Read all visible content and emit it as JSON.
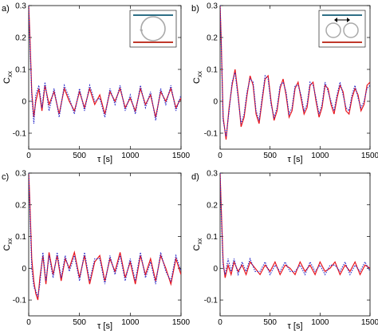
{
  "figure": {
    "xlabel": "τ [s]",
    "ylabel_main": "C",
    "ylabel_sub": "xx"
  },
  "colors": {
    "red": "#e8141c",
    "blue": "#2323c8",
    "inset_top": "#2e6f86",
    "inset_bottom": "#c0392b",
    "inset_loop": "#a9a9a9"
  },
  "chart_data": [
    {
      "panel_label": "a)",
      "type": "line",
      "xlabel": "τ [s]",
      "ylabel": "C_xx",
      "xlim": [
        0,
        1500
      ],
      "ylim": [
        -0.15,
        0.3
      ],
      "xticks": [
        "0",
        "500",
        "1000",
        "1500"
      ],
      "yticks": [
        "-0.1",
        "0",
        "0.1",
        "0.2",
        "0.3"
      ],
      "show_xlabel": true,
      "show_ylabel": true,
      "inset": "single-roll",
      "series": [
        {
          "color": "red",
          "style": "solid",
          "x": [
            0,
            10,
            30,
            50,
            70,
            100,
            130,
            160,
            200,
            250,
            300,
            350,
            400,
            450,
            500,
            550,
            600,
            650,
            700,
            750,
            800,
            850,
            900,
            950,
            1000,
            1050,
            1100,
            1150,
            1200,
            1250,
            1300,
            1350,
            1400,
            1450,
            1500
          ],
          "y": [
            0.3,
            0.22,
            0.03,
            -0.05,
            0.0,
            0.04,
            -0.03,
            0.05,
            -0.01,
            0.03,
            -0.04,
            0.04,
            0.0,
            -0.03,
            0.03,
            -0.02,
            0.04,
            -0.01,
            0.02,
            -0.04,
            0.03,
            0.0,
            0.04,
            -0.02,
            0.01,
            -0.03,
            0.04,
            -0.01,
            0.02,
            -0.05,
            0.03,
            0.0,
            0.04,
            -0.02,
            0.01
          ]
        },
        {
          "color": "blue",
          "style": "dotted",
          "x": [
            0,
            10,
            30,
            50,
            70,
            100,
            130,
            160,
            200,
            250,
            300,
            350,
            400,
            450,
            500,
            550,
            600,
            650,
            700,
            750,
            800,
            850,
            900,
            950,
            1000,
            1050,
            1100,
            1150,
            1200,
            1250,
            1300,
            1350,
            1400,
            1450,
            1500
          ],
          "y": [
            0.3,
            0.2,
            0.02,
            -0.07,
            0.02,
            0.05,
            -0.02,
            0.06,
            -0.03,
            0.04,
            -0.05,
            0.05,
            0.01,
            -0.04,
            0.04,
            -0.03,
            0.05,
            0.0,
            0.01,
            -0.05,
            0.04,
            -0.01,
            0.05,
            -0.03,
            0.02,
            -0.04,
            0.05,
            -0.02,
            0.03,
            -0.06,
            0.04,
            -0.01,
            0.05,
            -0.03,
            0.02
          ]
        }
      ]
    },
    {
      "panel_label": "b)",
      "type": "line",
      "xlabel": "τ [s]",
      "ylabel": "C_xx",
      "xlim": [
        0,
        1500
      ],
      "ylim": [
        -0.15,
        0.3
      ],
      "xticks": [
        "0",
        "500",
        "1000",
        "1500"
      ],
      "yticks": [
        "-0.1",
        "0",
        "0.1",
        "0.2",
        "0.3"
      ],
      "show_xlabel": true,
      "show_ylabel": true,
      "inset": "two-rolls",
      "series": [
        {
          "color": "red",
          "style": "solid",
          "x": [
            0,
            10,
            30,
            60,
            90,
            120,
            150,
            180,
            210,
            240,
            270,
            300,
            330,
            360,
            390,
            420,
            450,
            480,
            510,
            540,
            570,
            600,
            630,
            660,
            690,
            720,
            750,
            780,
            810,
            840,
            870,
            900,
            930,
            960,
            990,
            1020,
            1050,
            1080,
            1110,
            1140,
            1170,
            1200,
            1230,
            1260,
            1290,
            1320,
            1350,
            1380,
            1410,
            1440,
            1470,
            1500
          ],
          "y": [
            0.3,
            0.2,
            -0.05,
            -0.12,
            -0.02,
            0.05,
            0.1,
            0.02,
            -0.08,
            -0.05,
            0.02,
            0.08,
            0.05,
            -0.04,
            -0.07,
            0.0,
            0.07,
            0.08,
            0.0,
            -0.06,
            -0.03,
            0.04,
            0.07,
            0.02,
            -0.05,
            -0.03,
            0.04,
            0.06,
            0.01,
            -0.04,
            -0.02,
            0.05,
            0.06,
            0.0,
            -0.05,
            -0.02,
            0.05,
            0.04,
            -0.01,
            -0.04,
            0.01,
            0.05,
            0.03,
            -0.03,
            -0.04,
            0.01,
            0.04,
            0.02,
            -0.03,
            -0.01,
            0.05,
            0.06
          ]
        },
        {
          "color": "blue",
          "style": "dotted",
          "x": [
            0,
            10,
            30,
            60,
            90,
            120,
            150,
            180,
            210,
            240,
            270,
            300,
            330,
            360,
            390,
            420,
            450,
            480,
            510,
            540,
            570,
            600,
            630,
            660,
            690,
            720,
            750,
            780,
            810,
            840,
            870,
            900,
            930,
            960,
            990,
            1020,
            1050,
            1080,
            1110,
            1140,
            1170,
            1200,
            1230,
            1260,
            1290,
            1320,
            1350,
            1380,
            1410,
            1440,
            1470,
            1500
          ],
          "y": [
            0.3,
            0.19,
            -0.06,
            -0.11,
            -0.03,
            0.06,
            0.09,
            0.01,
            -0.07,
            -0.04,
            0.03,
            0.07,
            0.06,
            -0.03,
            -0.06,
            0.01,
            0.08,
            0.07,
            -0.01,
            -0.05,
            -0.02,
            0.05,
            0.06,
            0.03,
            -0.04,
            -0.02,
            0.05,
            0.05,
            0.02,
            -0.03,
            -0.01,
            0.06,
            0.05,
            0.01,
            -0.04,
            -0.01,
            0.06,
            0.03,
            0.0,
            -0.03,
            0.02,
            0.06,
            0.02,
            -0.02,
            -0.03,
            0.02,
            0.05,
            0.01,
            -0.02,
            0.0,
            0.04,
            0.05
          ]
        }
      ]
    },
    {
      "panel_label": "c)",
      "type": "line",
      "xlabel": "τ [s]",
      "ylabel": "C_xx",
      "xlim": [
        0,
        1500
      ],
      "ylim": [
        -0.15,
        0.3
      ],
      "xticks": [
        "0",
        "500",
        "1000",
        "1500"
      ],
      "yticks": [
        "-0.1",
        "0",
        "0.1",
        "0.2",
        "0.3"
      ],
      "show_xlabel": true,
      "show_ylabel": true,
      "inset": "",
      "series": [
        {
          "color": "red",
          "style": "solid",
          "x": [
            0,
            10,
            30,
            50,
            70,
            90,
            110,
            140,
            170,
            200,
            240,
            280,
            320,
            360,
            400,
            450,
            500,
            550,
            600,
            650,
            700,
            750,
            800,
            850,
            900,
            950,
            1000,
            1050,
            1100,
            1150,
            1200,
            1250,
            1300,
            1350,
            1400,
            1450,
            1500
          ],
          "y": [
            0.3,
            0.22,
            0.03,
            -0.04,
            -0.08,
            -0.1,
            -0.03,
            0.04,
            -0.05,
            0.05,
            -0.02,
            0.04,
            -0.04,
            0.03,
            0.0,
            0.05,
            -0.03,
            0.04,
            -0.05,
            0.02,
            0.04,
            -0.04,
            0.03,
            -0.01,
            0.05,
            -0.03,
            0.02,
            -0.05,
            0.04,
            -0.02,
            0.03,
            -0.04,
            0.04,
            0.0,
            -0.05,
            0.03,
            -0.02
          ]
        },
        {
          "color": "blue",
          "style": "dotted",
          "x": [
            0,
            10,
            30,
            50,
            70,
            90,
            110,
            140,
            170,
            200,
            240,
            280,
            320,
            360,
            400,
            450,
            500,
            550,
            600,
            650,
            700,
            750,
            800,
            850,
            900,
            950,
            1000,
            1050,
            1100,
            1150,
            1200,
            1250,
            1300,
            1350,
            1400,
            1450,
            1500
          ],
          "y": [
            0.3,
            0.2,
            0.0,
            -0.06,
            -0.07,
            -0.09,
            -0.05,
            0.05,
            -0.04,
            0.04,
            -0.03,
            0.05,
            -0.03,
            0.04,
            -0.01,
            0.04,
            -0.04,
            0.05,
            -0.04,
            0.03,
            0.03,
            -0.05,
            0.04,
            -0.02,
            0.04,
            -0.04,
            0.03,
            -0.04,
            0.05,
            -0.03,
            0.02,
            -0.05,
            0.05,
            -0.01,
            -0.04,
            0.04,
            -0.01
          ]
        }
      ]
    },
    {
      "panel_label": "d)",
      "type": "line",
      "xlabel": "τ [s]",
      "ylabel": "C_xx",
      "xlim": [
        0,
        1500
      ],
      "ylim": [
        -0.15,
        0.3
      ],
      "xticks": [
        "0",
        "500",
        "1000",
        "1500"
      ],
      "yticks": [
        "-0.1",
        "0",
        "0.1",
        "0.2",
        "0.3"
      ],
      "show_xlabel": true,
      "show_ylabel": true,
      "inset": "",
      "series": [
        {
          "color": "red",
          "style": "solid",
          "x": [
            0,
            10,
            30,
            50,
            80,
            110,
            140,
            180,
            220,
            260,
            300,
            350,
            400,
            450,
            500,
            550,
            600,
            650,
            700,
            750,
            800,
            850,
            900,
            950,
            1000,
            1050,
            1100,
            1150,
            1200,
            1250,
            1300,
            1350,
            1400,
            1450,
            1500
          ],
          "y": [
            0.3,
            0.2,
            0.02,
            -0.03,
            0.01,
            -0.02,
            0.02,
            -0.01,
            0.01,
            -0.02,
            0.02,
            0.0,
            -0.02,
            0.01,
            -0.01,
            0.02,
            -0.02,
            0.01,
            0.0,
            -0.02,
            0.02,
            -0.01,
            0.01,
            -0.02,
            0.02,
            -0.01,
            0.0,
            0.02,
            -0.02,
            0.01,
            -0.01,
            0.02,
            -0.02,
            0.01,
            0.0
          ]
        },
        {
          "color": "blue",
          "style": "dotted",
          "x": [
            0,
            10,
            30,
            50,
            80,
            110,
            140,
            180,
            220,
            260,
            300,
            350,
            400,
            450,
            500,
            550,
            600,
            650,
            700,
            750,
            800,
            850,
            900,
            950,
            1000,
            1050,
            1100,
            1150,
            1200,
            1250,
            1300,
            1350,
            1400,
            1450,
            1500
          ],
          "y": [
            0.3,
            0.18,
            0.01,
            -0.02,
            0.03,
            -0.01,
            0.03,
            -0.02,
            0.02,
            -0.01,
            0.03,
            -0.01,
            -0.01,
            0.02,
            -0.02,
            0.01,
            -0.01,
            0.02,
            -0.01,
            -0.01,
            0.01,
            -0.02,
            0.02,
            -0.01,
            0.01,
            -0.02,
            0.01,
            0.01,
            -0.01,
            0.02,
            -0.02,
            0.01,
            -0.01,
            0.02,
            -0.01
          ]
        }
      ]
    }
  ]
}
